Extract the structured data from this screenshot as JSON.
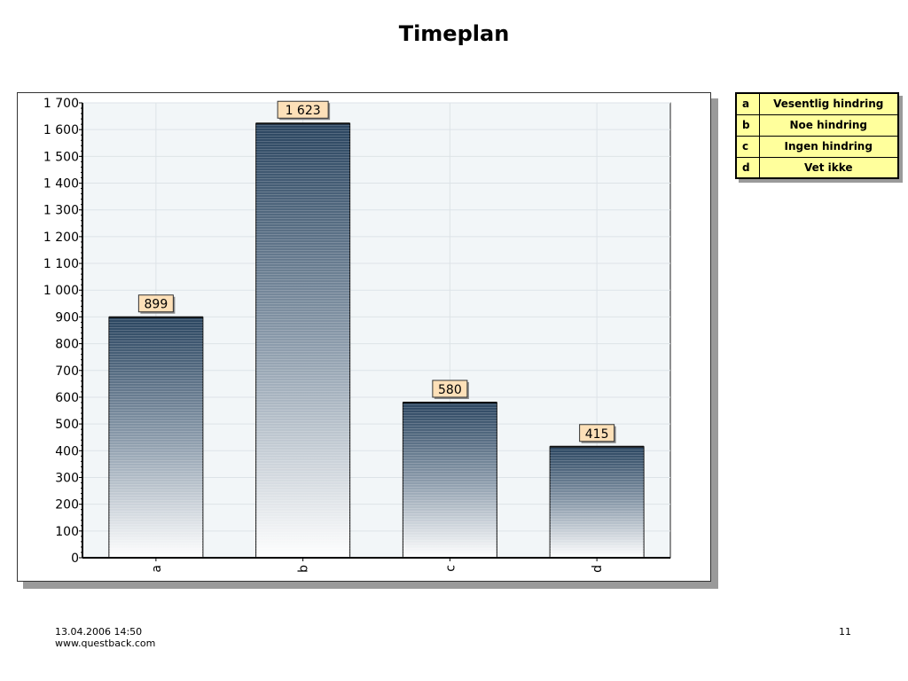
{
  "title": "Timeplan",
  "chart_data": {
    "type": "bar",
    "categories": [
      "a",
      "b",
      "c",
      "d"
    ],
    "values": [
      899,
      1623,
      580,
      415
    ],
    "data_labels": [
      "899",
      "1 623",
      "580",
      "415"
    ],
    "ylim": [
      0,
      1700
    ],
    "yticks": [
      0,
      100,
      200,
      300,
      400,
      500,
      600,
      700,
      800,
      900,
      1000,
      1100,
      1200,
      1300,
      1400,
      1500,
      1600,
      1700
    ],
    "ytick_labels": [
      "0",
      "100",
      "200",
      "300",
      "400",
      "500",
      "600",
      "700",
      "800",
      "900",
      "1 000",
      "1 100",
      "1 200",
      "1 300",
      "1 400",
      "1 500",
      "1 600",
      "1 700"
    ],
    "grid": true,
    "title": "",
    "xlabel": "",
    "ylabel": "",
    "colors": {
      "bar_top": "#2a4560",
      "bar_bottom": "#ffffff",
      "plot_bg": "#f2f6f8",
      "label_bg": "#fde0b8"
    }
  },
  "legend": [
    {
      "key": "a",
      "label": "Vesentlig hindring"
    },
    {
      "key": "b",
      "label": "Noe hindring"
    },
    {
      "key": "c",
      "label": "Ingen hindring"
    },
    {
      "key": "d",
      "label": "Vet ikke"
    }
  ],
  "footer": {
    "datetime": "13.04.2006 14:50",
    "site": "www.questback.com",
    "page_number": "11"
  }
}
